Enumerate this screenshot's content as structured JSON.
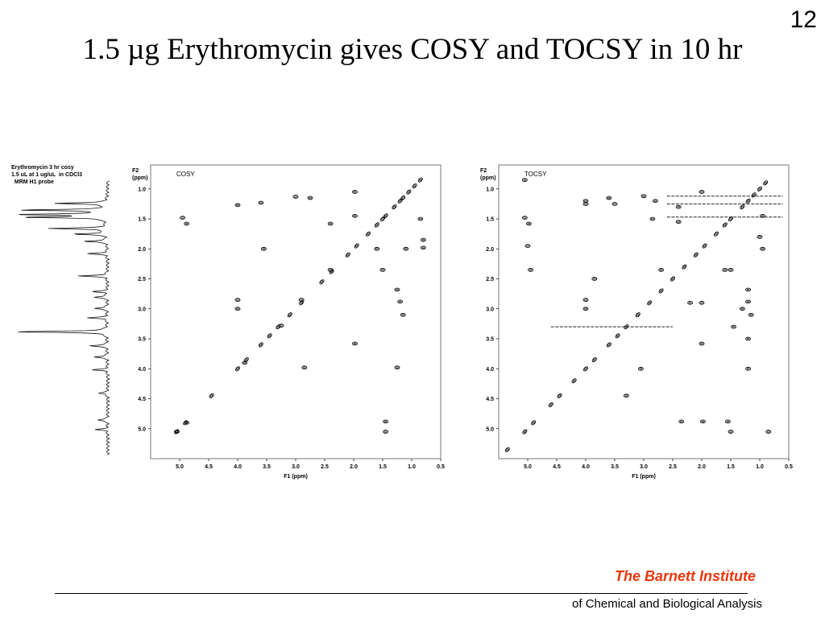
{
  "slide": {
    "number": "12",
    "title": "1.5 µg Erythromycin gives COSY and TOCSY in 10 hr"
  },
  "spectrum_1d": {
    "caption": "Erythromycin 3 hr cosy\n1.5 uL at 1 ug/uL  in CDCl3\n  MRM H1 probe",
    "peaks_ppm": [
      1.0,
      1.12,
      1.2,
      1.25,
      1.45,
      1.55,
      1.68,
      1.9,
      2.3,
      2.58,
      2.68,
      2.88,
      3.05,
      3.3,
      3.55,
      3.75,
      3.98,
      4.4,
      4.88,
      5.05
    ],
    "heights": [
      0.55,
      0.9,
      0.95,
      0.85,
      0.6,
      0.35,
      0.25,
      0.2,
      0.3,
      0.15,
      0.15,
      0.15,
      0.2,
      0.98,
      0.2,
      0.15,
      0.15,
      0.1,
      0.12,
      0.12
    ]
  },
  "chart_data": [
    {
      "type": "scatter",
      "panel_label": "COSY",
      "xlabel": "F1 (ppm)",
      "ylabel": [
        "F2",
        "(ppm)"
      ],
      "xlim": [
        5.5,
        0.5
      ],
      "ylim": [
        0.6,
        5.5
      ],
      "x_ticks": [
        "5.0",
        "4.5",
        "4.0",
        "3.5",
        "3.0",
        "2.5",
        "2.0",
        "1.5",
        "1.0",
        "0.5"
      ],
      "y_ticks": [
        "1.0",
        "1.5",
        "2.0",
        "2.5",
        "3.0",
        "3.5",
        "4.0",
        "4.5",
        "5.0"
      ],
      "diagonal": [
        [
          5.05,
          5.05
        ],
        [
          4.9,
          4.9
        ],
        [
          4.45,
          4.45
        ],
        [
          4.0,
          4.0
        ],
        [
          3.85,
          3.85
        ],
        [
          3.6,
          3.6
        ],
        [
          3.45,
          3.45
        ],
        [
          3.3,
          3.3
        ],
        [
          3.1,
          3.1
        ],
        [
          2.9,
          2.9
        ],
        [
          2.55,
          2.55
        ],
        [
          2.38,
          2.38
        ],
        [
          2.1,
          2.1
        ],
        [
          1.95,
          1.95
        ],
        [
          1.75,
          1.75
        ],
        [
          1.6,
          1.6
        ],
        [
          1.5,
          1.5
        ],
        [
          1.45,
          1.45
        ],
        [
          1.3,
          1.3
        ],
        [
          1.2,
          1.2
        ],
        [
          1.15,
          1.15
        ],
        [
          1.05,
          1.05
        ],
        [
          0.95,
          0.95
        ],
        [
          0.85,
          0.85
        ]
      ],
      "cross_peaks": [
        [
          4.95,
          1.48
        ],
        [
          4.88,
          1.58
        ],
        [
          4.88,
          4.9
        ],
        [
          5.05,
          5.05
        ],
        [
          4.0,
          1.27
        ],
        [
          4.0,
          2.85
        ],
        [
          4.0,
          3.0
        ],
        [
          3.88,
          3.9
        ],
        [
          3.6,
          1.23
        ],
        [
          3.55,
          2.0
        ],
        [
          3.0,
          1.13
        ],
        [
          2.75,
          1.15
        ],
        [
          2.4,
          1.58
        ],
        [
          2.4,
          2.35
        ],
        [
          1.98,
          1.05
        ],
        [
          1.98,
          1.45
        ],
        [
          1.98,
          3.58
        ],
        [
          1.6,
          2.0
        ],
        [
          1.5,
          2.35
        ],
        [
          1.45,
          4.88
        ],
        [
          1.25,
          2.68
        ],
        [
          1.2,
          2.88
        ],
        [
          1.15,
          3.1
        ],
        [
          1.25,
          3.98
        ],
        [
          1.1,
          2.0
        ],
        [
          0.8,
          1.85
        ],
        [
          0.8,
          1.98
        ],
        [
          2.85,
          3.98
        ],
        [
          2.9,
          2.85
        ],
        [
          3.25,
          3.28
        ],
        [
          0.85,
          1.5
        ],
        [
          1.45,
          5.05
        ]
      ]
    },
    {
      "type": "scatter",
      "panel_label": "TOCSY",
      "xlabel": "F1 (ppm)",
      "ylabel": [
        "F2",
        "(ppm)"
      ],
      "xlim": [
        5.5,
        0.5
      ],
      "ylim": [
        0.6,
        5.5
      ],
      "x_ticks": [
        "5.0",
        "4.5",
        "4.0",
        "3.5",
        "3.0",
        "2.5",
        "2.0",
        "1.5",
        "1.0",
        "0.5"
      ],
      "y_ticks": [
        "1.0",
        "1.5",
        "2.0",
        "2.5",
        "3.0",
        "3.5",
        "4.0",
        "4.5",
        "5.0"
      ],
      "diagonal": [
        [
          5.35,
          5.35
        ],
        [
          5.05,
          5.05
        ],
        [
          4.9,
          4.9
        ],
        [
          4.6,
          4.6
        ],
        [
          4.45,
          4.45
        ],
        [
          4.2,
          4.2
        ],
        [
          4.0,
          4.0
        ],
        [
          3.85,
          3.85
        ],
        [
          3.6,
          3.6
        ],
        [
          3.45,
          3.45
        ],
        [
          3.3,
          3.3
        ],
        [
          3.1,
          3.1
        ],
        [
          2.9,
          2.9
        ],
        [
          2.7,
          2.7
        ],
        [
          2.5,
          2.5
        ],
        [
          2.3,
          2.3
        ],
        [
          2.1,
          2.1
        ],
        [
          1.95,
          1.95
        ],
        [
          1.75,
          1.75
        ],
        [
          1.6,
          1.6
        ],
        [
          1.5,
          1.5
        ],
        [
          1.3,
          1.3
        ],
        [
          1.2,
          1.2
        ],
        [
          1.1,
          1.1
        ],
        [
          1.0,
          1.0
        ],
        [
          0.9,
          0.9
        ]
      ],
      "cross_peaks": [
        [
          5.05,
          0.85
        ],
        [
          5.05,
          1.48
        ],
        [
          4.98,
          1.58
        ],
        [
          5.0,
          1.95
        ],
        [
          4.95,
          2.35
        ],
        [
          4.0,
          1.2
        ],
        [
          4.0,
          1.25
        ],
        [
          4.0,
          2.85
        ],
        [
          4.0,
          3.0
        ],
        [
          3.6,
          1.15
        ],
        [
          3.5,
          1.25
        ],
        [
          3.0,
          1.12
        ],
        [
          2.8,
          1.2
        ],
        [
          2.4,
          1.3
        ],
        [
          2.4,
          1.55
        ],
        [
          2.0,
          1.05
        ],
        [
          2.0,
          2.9
        ],
        [
          2.0,
          3.58
        ],
        [
          1.98,
          4.88
        ],
        [
          1.6,
          2.35
        ],
        [
          1.5,
          2.35
        ],
        [
          1.45,
          3.3
        ],
        [
          1.3,
          3.0
        ],
        [
          1.2,
          3.5
        ],
        [
          1.2,
          4.0
        ],
        [
          1.2,
          2.68
        ],
        [
          1.2,
          2.88
        ],
        [
          1.15,
          3.1
        ],
        [
          0.95,
          1.45
        ],
        [
          0.95,
          2.0
        ],
        [
          0.85,
          5.05
        ],
        [
          1.5,
          5.05
        ],
        [
          1.55,
          4.88
        ],
        [
          2.35,
          4.88
        ],
        [
          2.7,
          2.35
        ],
        [
          3.05,
          4.0
        ],
        [
          3.85,
          2.5
        ],
        [
          3.3,
          4.45
        ],
        [
          2.85,
          1.5
        ],
        [
          2.2,
          2.9
        ],
        [
          1.0,
          1.8
        ]
      ],
      "ridges_f2": [
        1.12,
        1.25,
        1.47,
        3.3
      ]
    }
  ]
}
